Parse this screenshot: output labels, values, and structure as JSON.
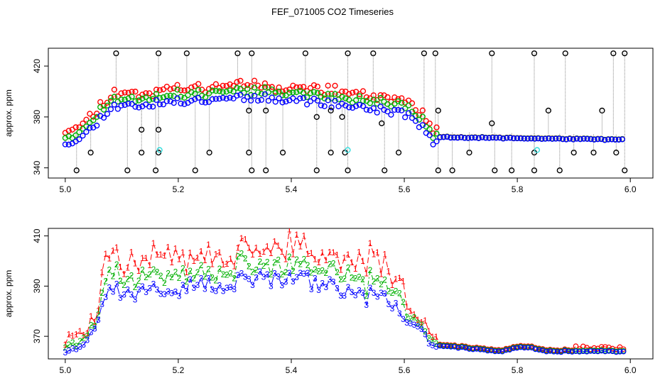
{
  "title": "FEF_071005  CO2 Timeseries",
  "colors": {
    "series1": "#ff0000",
    "series2": "#00b000",
    "series3": "#0000ff",
    "spike": "#000000",
    "outlier": "#33dddd",
    "drop_line": "#888888"
  },
  "chart_data": [
    {
      "type": "scatter",
      "ylabel": "approx. ppm",
      "xlim": [
        4.97,
        6.04
      ],
      "ylim": [
        332,
        434
      ],
      "xticks": [
        "5.0",
        "5.2",
        "5.4",
        "5.6",
        "5.8",
        "6.0"
      ],
      "xtick_values": [
        5.0,
        5.2,
        5.4,
        5.6,
        5.8,
        6.0
      ],
      "yticks": [
        "340",
        "380",
        "420"
      ],
      "ytick_values": [
        340,
        380,
        420
      ],
      "profile": [
        [
          5.0,
          362
        ],
        [
          5.03,
          366
        ],
        [
          5.05,
          375
        ],
        [
          5.08,
          390
        ],
        [
          5.15,
          392
        ],
        [
          5.3,
          398
        ],
        [
          5.4,
          396
        ],
        [
          5.5,
          391
        ],
        [
          5.6,
          385
        ],
        [
          5.63,
          375
        ],
        [
          5.65,
          363
        ],
        [
          5.67,
          364
        ],
        [
          5.99,
          362
        ]
      ],
      "spikes_high": [
        [
          5.09,
          430
        ],
        [
          5.165,
          430
        ],
        [
          5.215,
          430
        ],
        [
          5.305,
          430
        ],
        [
          5.33,
          430
        ],
        [
          5.425,
          430
        ],
        [
          5.5,
          430
        ],
        [
          5.545,
          430
        ],
        [
          5.635,
          430
        ],
        [
          5.655,
          430
        ],
        [
          5.755,
          430
        ],
        [
          5.83,
          430
        ],
        [
          5.885,
          430
        ],
        [
          5.97,
          430
        ],
        [
          5.99,
          430
        ]
      ],
      "spikes_low": [
        [
          5.02,
          338
        ],
        [
          5.045,
          352
        ],
        [
          5.11,
          338
        ],
        [
          5.135,
          352
        ],
        [
          5.16,
          338
        ],
        [
          5.165,
          352
        ],
        [
          5.23,
          338
        ],
        [
          5.255,
          352
        ],
        [
          5.325,
          352
        ],
        [
          5.33,
          338
        ],
        [
          5.355,
          338
        ],
        [
          5.385,
          352
        ],
        [
          5.445,
          338
        ],
        [
          5.47,
          352
        ],
        [
          5.495,
          352
        ],
        [
          5.5,
          338
        ],
        [
          5.565,
          338
        ],
        [
          5.59,
          352
        ],
        [
          5.66,
          338
        ],
        [
          5.685,
          338
        ],
        [
          5.715,
          352
        ],
        [
          5.76,
          338
        ],
        [
          5.79,
          338
        ],
        [
          5.83,
          352
        ],
        [
          5.83,
          338
        ],
        [
          5.875,
          338
        ],
        [
          5.9,
          352
        ],
        [
          5.935,
          352
        ],
        [
          5.975,
          352
        ],
        [
          5.99,
          338
        ]
      ],
      "spikes_mid": [
        [
          5.135,
          370
        ],
        [
          5.165,
          370
        ],
        [
          5.325,
          385
        ],
        [
          5.355,
          385
        ],
        [
          5.445,
          380
        ],
        [
          5.47,
          385
        ],
        [
          5.49,
          380
        ],
        [
          5.56,
          375
        ],
        [
          5.66,
          385
        ],
        [
          5.755,
          375
        ],
        [
          5.855,
          385
        ],
        [
          5.95,
          385
        ]
      ],
      "outliers": [
        [
          5.167,
          354
        ],
        [
          5.5,
          354
        ],
        [
          5.835,
          354
        ]
      ],
      "series": [
        {
          "name": "1",
          "marker": "circle"
        },
        {
          "name": "2",
          "marker": "circle"
        },
        {
          "name": "3",
          "marker": "circle"
        }
      ]
    },
    {
      "type": "line",
      "ylabel": "approx. ppm",
      "xlim": [
        4.97,
        6.04
      ],
      "ylim": [
        361,
        413
      ],
      "xticks": [
        "5.0",
        "5.2",
        "5.4",
        "5.6",
        "5.8",
        "6.0"
      ],
      "xtick_values": [
        5.0,
        5.2,
        5.4,
        5.6,
        5.8,
        6.0
      ],
      "yticks": [
        "370",
        "390",
        "410"
      ],
      "ytick_values": [
        370,
        390,
        410
      ],
      "profile": [
        [
          5.0,
          364
        ],
        [
          5.03,
          366
        ],
        [
          5.05,
          372
        ],
        [
          5.07,
          382
        ],
        [
          5.08,
          388
        ],
        [
          5.15,
          388
        ],
        [
          5.3,
          392
        ],
        [
          5.4,
          393
        ],
        [
          5.5,
          389
        ],
        [
          5.52,
          386
        ],
        [
          5.57,
          386
        ],
        [
          5.6,
          377
        ],
        [
          5.63,
          372
        ],
        [
          5.65,
          366
        ],
        [
          5.67,
          366
        ],
        [
          5.75,
          364.5
        ],
        [
          5.77,
          364
        ],
        [
          5.8,
          365.5
        ],
        [
          5.82,
          365.5
        ],
        [
          5.85,
          364
        ],
        [
          5.99,
          364
        ]
      ],
      "series": [
        {
          "name": "1",
          "marker": "1"
        },
        {
          "name": "2",
          "marker": "2"
        },
        {
          "name": "3",
          "marker": "3"
        }
      ]
    }
  ]
}
